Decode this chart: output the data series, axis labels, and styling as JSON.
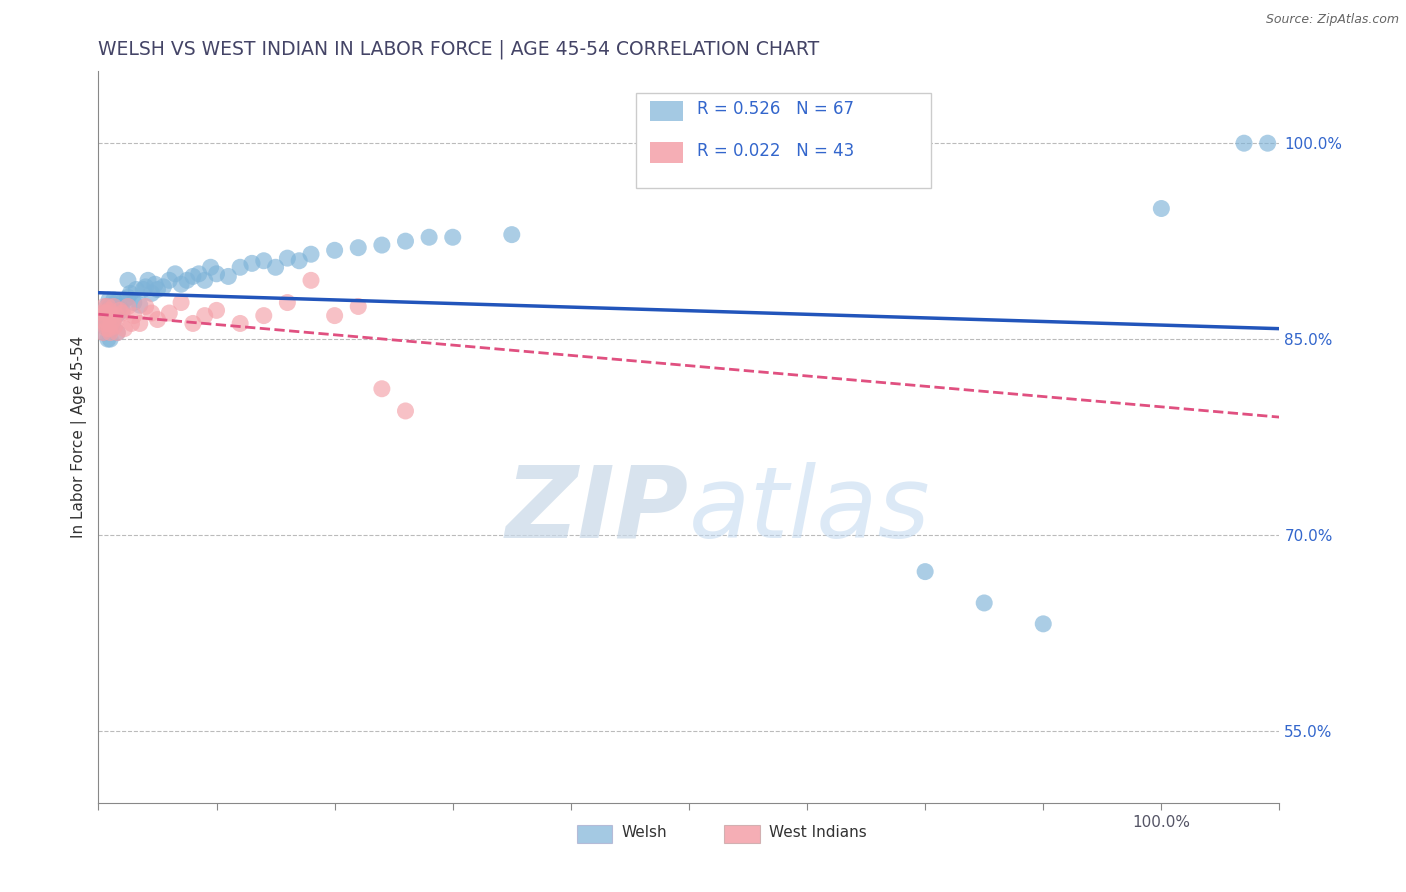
{
  "title": "WELSH VS WEST INDIAN IN LABOR FORCE | AGE 45-54 CORRELATION CHART",
  "source": "Source: ZipAtlas.com",
  "ylabel": "In Labor Force | Age 45-54",
  "xlim": [
    0.0,
    1.0
  ],
  "ylim": [
    0.495,
    1.055
  ],
  "ytick_positions": [
    0.55,
    0.7,
    0.85,
    1.0
  ],
  "ytick_labels": [
    "55.0%",
    "70.0%",
    "85.0%",
    "100.0%"
  ],
  "welsh_R": 0.526,
  "welsh_N": 67,
  "westindian_R": 0.022,
  "westindian_N": 43,
  "blue_color": "#7EB3D8",
  "pink_color": "#F4A0A8",
  "blue_line_color": "#2255BB",
  "pink_line_color": "#E05080",
  "legend_text_color": "#3366CC",
  "title_color": "#444466",
  "watermark_color": "#D8E8F2",
  "welsh_x": [
    0.005,
    0.005,
    0.005,
    0.007,
    0.007,
    0.008,
    0.008,
    0.009,
    0.009,
    0.01,
    0.01,
    0.01,
    0.011,
    0.012,
    0.013,
    0.013,
    0.014,
    0.015,
    0.015,
    0.016,
    0.017,
    0.018,
    0.02,
    0.022,
    0.025,
    0.025,
    0.027,
    0.03,
    0.032,
    0.035,
    0.038,
    0.04,
    0.042,
    0.045,
    0.048,
    0.05,
    0.055,
    0.06,
    0.065,
    0.07,
    0.075,
    0.08,
    0.085,
    0.09,
    0.095,
    0.1,
    0.11,
    0.12,
    0.13,
    0.14,
    0.15,
    0.16,
    0.17,
    0.18,
    0.2,
    0.22,
    0.24,
    0.26,
    0.28,
    0.3,
    0.35,
    0.7,
    0.75,
    0.8,
    0.9,
    0.97,
    0.99
  ],
  "welsh_y": [
    0.855,
    0.86,
    0.87,
    0.865,
    0.875,
    0.85,
    0.865,
    0.87,
    0.88,
    0.85,
    0.86,
    0.875,
    0.858,
    0.862,
    0.87,
    0.88,
    0.875,
    0.868,
    0.878,
    0.855,
    0.87,
    0.875,
    0.872,
    0.88,
    0.882,
    0.895,
    0.885,
    0.878,
    0.888,
    0.876,
    0.888,
    0.89,
    0.895,
    0.885,
    0.892,
    0.888,
    0.89,
    0.895,
    0.9,
    0.892,
    0.895,
    0.898,
    0.9,
    0.895,
    0.905,
    0.9,
    0.898,
    0.905,
    0.908,
    0.91,
    0.905,
    0.912,
    0.91,
    0.915,
    0.918,
    0.92,
    0.922,
    0.925,
    0.928,
    0.928,
    0.93,
    0.672,
    0.648,
    0.632,
    0.95,
    1.0,
    1.0
  ],
  "westindian_x": [
    0.003,
    0.004,
    0.005,
    0.005,
    0.006,
    0.006,
    0.007,
    0.007,
    0.008,
    0.008,
    0.009,
    0.009,
    0.01,
    0.01,
    0.011,
    0.012,
    0.013,
    0.014,
    0.015,
    0.016,
    0.018,
    0.02,
    0.022,
    0.025,
    0.028,
    0.03,
    0.035,
    0.04,
    0.045,
    0.05,
    0.06,
    0.07,
    0.08,
    0.09,
    0.1,
    0.12,
    0.14,
    0.16,
    0.18,
    0.2,
    0.22,
    0.24,
    0.26
  ],
  "westindian_y": [
    0.87,
    0.855,
    0.875,
    0.865,
    0.862,
    0.87,
    0.858,
    0.87,
    0.862,
    0.875,
    0.858,
    0.872,
    0.855,
    0.868,
    0.862,
    0.865,
    0.875,
    0.86,
    0.868,
    0.855,
    0.872,
    0.87,
    0.858,
    0.875,
    0.862,
    0.868,
    0.862,
    0.875,
    0.87,
    0.865,
    0.87,
    0.878,
    0.862,
    0.868,
    0.872,
    0.862,
    0.868,
    0.878,
    0.895,
    0.868,
    0.875,
    0.812,
    0.795
  ]
}
